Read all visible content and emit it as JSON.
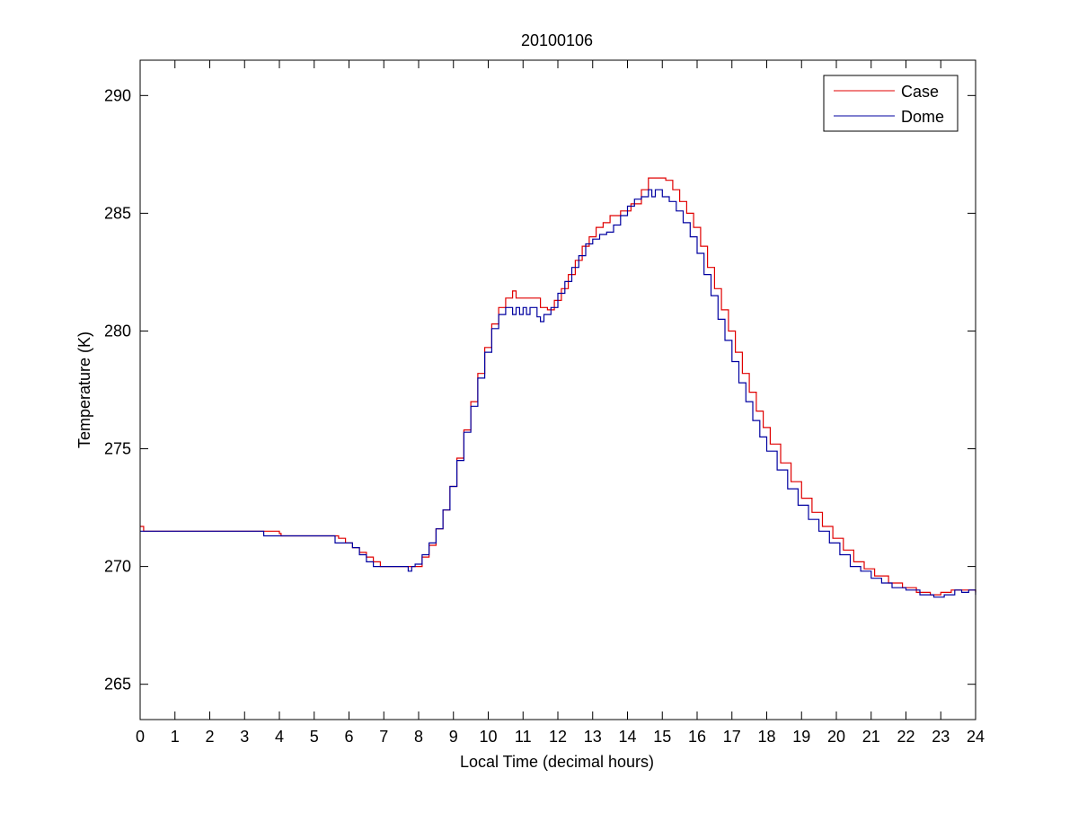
{
  "chart_data": {
    "type": "line",
    "title": "20100106",
    "xlabel": "Local Time (decimal hours)",
    "ylabel": "Temperature (K)",
    "xlim": [
      0,
      24
    ],
    "ylim": [
      263.5,
      291.5
    ],
    "xticks": [
      0,
      1,
      2,
      3,
      4,
      5,
      6,
      7,
      8,
      9,
      10,
      11,
      12,
      13,
      14,
      15,
      16,
      17,
      18,
      19,
      20,
      21,
      22,
      23,
      24
    ],
    "yticks": [
      265,
      270,
      275,
      280,
      285,
      290
    ],
    "grid": false,
    "legend_position": "top-right",
    "series": [
      {
        "name": "Case",
        "color": "#e00000",
        "points": [
          [
            0,
            271.7
          ],
          [
            0.1,
            271.5
          ],
          [
            3.5,
            271.5
          ],
          [
            4,
            271.4
          ],
          [
            4.05,
            271.3
          ],
          [
            5.5,
            271.3
          ],
          [
            5.7,
            271.2
          ],
          [
            5.9,
            271.0
          ],
          [
            6.1,
            270.8
          ],
          [
            6.3,
            270.6
          ],
          [
            6.5,
            270.4
          ],
          [
            6.7,
            270.2
          ],
          [
            6.9,
            270.0
          ],
          [
            7.9,
            270.0
          ],
          [
            8.1,
            270.4
          ],
          [
            8.3,
            270.9
          ],
          [
            8.5,
            271.6
          ],
          [
            8.7,
            272.4
          ],
          [
            8.9,
            273.4
          ],
          [
            9.1,
            274.6
          ],
          [
            9.3,
            275.8
          ],
          [
            9.5,
            277.0
          ],
          [
            9.7,
            278.2
          ],
          [
            9.9,
            279.3
          ],
          [
            10.1,
            280.3
          ],
          [
            10.3,
            281.0
          ],
          [
            10.5,
            281.4
          ],
          [
            10.7,
            281.7
          ],
          [
            10.8,
            281.4
          ],
          [
            11.3,
            281.4
          ],
          [
            11.5,
            281.0
          ],
          [
            11.7,
            280.9
          ],
          [
            11.9,
            281.3
          ],
          [
            12.1,
            281.8
          ],
          [
            12.3,
            282.4
          ],
          [
            12.5,
            283.0
          ],
          [
            12.7,
            283.6
          ],
          [
            12.9,
            284.0
          ],
          [
            13.1,
            284.4
          ],
          [
            13.3,
            284.6
          ],
          [
            13.5,
            284.9
          ],
          [
            13.8,
            285.1
          ],
          [
            14.1,
            285.4
          ],
          [
            14.4,
            286.0
          ],
          [
            14.6,
            286.5
          ],
          [
            15.1,
            286.4
          ],
          [
            15.3,
            286.0
          ],
          [
            15.5,
            285.5
          ],
          [
            15.7,
            285.0
          ],
          [
            15.9,
            284.4
          ],
          [
            16.1,
            283.6
          ],
          [
            16.3,
            282.7
          ],
          [
            16.5,
            281.8
          ],
          [
            16.7,
            280.9
          ],
          [
            16.9,
            280.0
          ],
          [
            17.1,
            279.1
          ],
          [
            17.3,
            278.2
          ],
          [
            17.5,
            277.4
          ],
          [
            17.7,
            276.6
          ],
          [
            17.9,
            275.9
          ],
          [
            18.1,
            275.2
          ],
          [
            18.4,
            274.4
          ],
          [
            18.7,
            273.6
          ],
          [
            19.0,
            272.9
          ],
          [
            19.3,
            272.3
          ],
          [
            19.6,
            271.7
          ],
          [
            19.9,
            271.2
          ],
          [
            20.2,
            270.7
          ],
          [
            20.5,
            270.2
          ],
          [
            20.8,
            269.9
          ],
          [
            21.1,
            269.6
          ],
          [
            21.5,
            269.3
          ],
          [
            21.9,
            269.1
          ],
          [
            22.3,
            268.9
          ],
          [
            22.7,
            268.8
          ],
          [
            23.0,
            268.9
          ],
          [
            23.3,
            269.0
          ],
          [
            24,
            268.9
          ]
        ]
      },
      {
        "name": "Dome",
        "color": "#0000a0",
        "points": [
          [
            0,
            271.5
          ],
          [
            3.5,
            271.5
          ],
          [
            3.55,
            271.3
          ],
          [
            5.5,
            271.3
          ],
          [
            5.6,
            271.0
          ],
          [
            5.9,
            271.0
          ],
          [
            6.1,
            270.8
          ],
          [
            6.3,
            270.5
          ],
          [
            6.5,
            270.2
          ],
          [
            6.7,
            270.0
          ],
          [
            7.6,
            270.0
          ],
          [
            7.7,
            269.8
          ],
          [
            7.8,
            270.0
          ],
          [
            7.9,
            270.1
          ],
          [
            8.1,
            270.5
          ],
          [
            8.3,
            271.0
          ],
          [
            8.5,
            271.6
          ],
          [
            8.7,
            272.4
          ],
          [
            8.9,
            273.4
          ],
          [
            9.1,
            274.5
          ],
          [
            9.3,
            275.7
          ],
          [
            9.5,
            276.8
          ],
          [
            9.7,
            278.0
          ],
          [
            9.9,
            279.1
          ],
          [
            10.1,
            280.1
          ],
          [
            10.3,
            280.7
          ],
          [
            10.5,
            281.0
          ],
          [
            10.7,
            280.7
          ],
          [
            10.8,
            281.0
          ],
          [
            10.9,
            280.7
          ],
          [
            11.0,
            281.0
          ],
          [
            11.1,
            280.7
          ],
          [
            11.2,
            281.0
          ],
          [
            11.4,
            280.6
          ],
          [
            11.5,
            280.4
          ],
          [
            11.6,
            280.7
          ],
          [
            11.8,
            281.0
          ],
          [
            12.0,
            281.6
          ],
          [
            12.2,
            282.1
          ],
          [
            12.4,
            282.7
          ],
          [
            12.6,
            283.2
          ],
          [
            12.8,
            283.7
          ],
          [
            13.0,
            283.9
          ],
          [
            13.2,
            284.1
          ],
          [
            13.4,
            284.2
          ],
          [
            13.6,
            284.5
          ],
          [
            13.8,
            284.9
          ],
          [
            14.0,
            285.3
          ],
          [
            14.2,
            285.6
          ],
          [
            14.4,
            285.7
          ],
          [
            14.6,
            286.0
          ],
          [
            14.7,
            285.7
          ],
          [
            14.8,
            286.0
          ],
          [
            15.0,
            285.7
          ],
          [
            15.2,
            285.5
          ],
          [
            15.4,
            285.1
          ],
          [
            15.6,
            284.6
          ],
          [
            15.8,
            284.0
          ],
          [
            16.0,
            283.3
          ],
          [
            16.2,
            282.4
          ],
          [
            16.4,
            281.5
          ],
          [
            16.6,
            280.5
          ],
          [
            16.8,
            279.6
          ],
          [
            17.0,
            278.7
          ],
          [
            17.2,
            277.8
          ],
          [
            17.4,
            277.0
          ],
          [
            17.6,
            276.2
          ],
          [
            17.8,
            275.5
          ],
          [
            18.0,
            274.9
          ],
          [
            18.3,
            274.1
          ],
          [
            18.6,
            273.3
          ],
          [
            18.9,
            272.6
          ],
          [
            19.2,
            272.0
          ],
          [
            19.5,
            271.5
          ],
          [
            19.8,
            271.0
          ],
          [
            20.1,
            270.5
          ],
          [
            20.4,
            270.0
          ],
          [
            20.7,
            269.8
          ],
          [
            21.0,
            269.5
          ],
          [
            21.3,
            269.3
          ],
          [
            21.6,
            269.1
          ],
          [
            22.0,
            269.0
          ],
          [
            22.4,
            268.8
          ],
          [
            22.8,
            268.7
          ],
          [
            23.1,
            268.8
          ],
          [
            23.4,
            269.0
          ],
          [
            23.6,
            268.9
          ],
          [
            23.8,
            269.0
          ],
          [
            24,
            268.8
          ]
        ]
      }
    ]
  }
}
